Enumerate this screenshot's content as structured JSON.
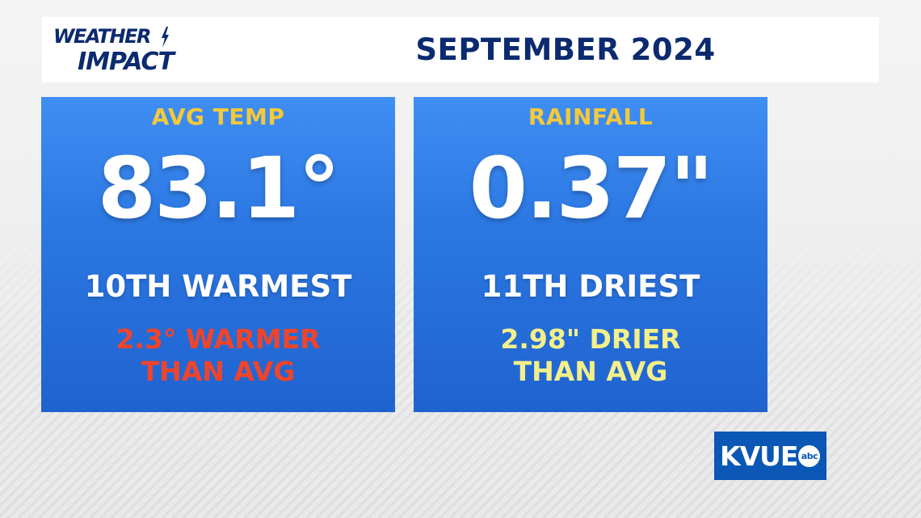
{
  "colors": {
    "navy": "#0b2a6f",
    "card_blue": "#2c78e3",
    "label_gold": "#f4c93a",
    "warm_red": "#f0442a",
    "dry_yellow": "#f3f08a",
    "brand_blue": "#0a57b5"
  },
  "logo": {
    "line1": "WEATHER",
    "line2": "IMPACT",
    "icon": "lightning-bolt-icon"
  },
  "header": {
    "title": "SEPTEMBER 2024"
  },
  "cards": [
    {
      "label": "AVG TEMP",
      "value": "83.1°",
      "rank": "10TH WARMEST",
      "delta_line1": "2.3° WARMER",
      "delta_line2": "THAN AVG",
      "delta_color": "#f0442a"
    },
    {
      "label": "RAINFALL",
      "value": "0.37\"",
      "rank": "11TH DRIEST",
      "delta_line1": "2.98\" DRIER",
      "delta_line2": "THAN AVG",
      "delta_color": "#f3f08a"
    }
  ],
  "station": {
    "name": "KVUE",
    "network": "abc"
  }
}
